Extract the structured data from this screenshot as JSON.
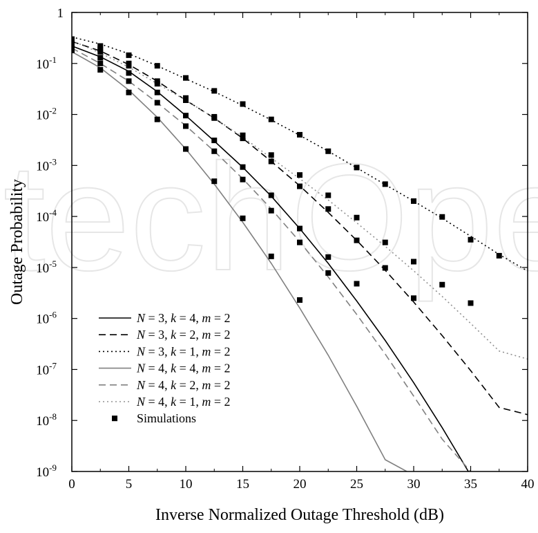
{
  "chart_data": {
    "type": "line",
    "title": "",
    "xlabel": "Inverse Normalized Outage Threshold (dB)",
    "ylabel": "Outage Probability",
    "xlim": [
      0,
      40
    ],
    "ylim": [
      1e-09,
      1
    ],
    "y_scale": "log",
    "grid": false,
    "legend_position": "bottom-left",
    "x_ticks": [
      0,
      5,
      10,
      15,
      20,
      25,
      30,
      35,
      40
    ],
    "y_ticks": [
      {
        "value": 1,
        "base": "1",
        "exp": ""
      },
      {
        "value": 0.1,
        "base": "10",
        "exp": "-1"
      },
      {
        "value": 0.01,
        "base": "10",
        "exp": "-2"
      },
      {
        "value": 0.001,
        "base": "10",
        "exp": "-3"
      },
      {
        "value": 0.0001,
        "base": "10",
        "exp": "-4"
      },
      {
        "value": 1e-05,
        "base": "10",
        "exp": "-5"
      },
      {
        "value": 1e-06,
        "base": "10",
        "exp": "-6"
      },
      {
        "value": 1e-07,
        "base": "10",
        "exp": "-7"
      },
      {
        "value": 1e-08,
        "base": "10",
        "exp": "-8"
      },
      {
        "value": 1e-09,
        "base": "10",
        "exp": "-9"
      }
    ],
    "series": [
      {
        "legend": {
          "n": "3",
          "k": "4",
          "m": "2"
        },
        "color": "#000000",
        "dash": "solid",
        "x": [
          0,
          2.5,
          5,
          7.5,
          10,
          12.5,
          15,
          17.5,
          20,
          22.5,
          25,
          27.5,
          30,
          32.5,
          35,
          37.5
        ],
        "y": [
          0.22,
          0.135,
          0.07,
          0.028,
          0.0095,
          0.003,
          0.00092,
          0.00025,
          5.8e-05,
          1.2e-05,
          2.2e-06,
          3.7e-07,
          5.5e-08,
          7.2e-09,
          8.4e-10,
          8e-10
        ]
      },
      {
        "legend": {
          "n": "3",
          "k": "2",
          "m": "2"
        },
        "color": "#000000",
        "dash": "dashed",
        "x": [
          0,
          2.5,
          5,
          7.5,
          10,
          12.5,
          15,
          17.5,
          20,
          22.5,
          25,
          27.5,
          30,
          32.5,
          35,
          37.5,
          40
        ],
        "y": [
          0.27,
          0.175,
          0.095,
          0.045,
          0.019,
          0.0085,
          0.0034,
          0.0012,
          0.0004,
          0.00012,
          3.4e-05,
          8.8e-06,
          2.1e-06,
          4.6e-07,
          9.5e-08,
          1.8e-08,
          1.3e-08
        ]
      },
      {
        "legend": {
          "n": "3",
          "k": "1",
          "m": "2"
        },
        "color": "#000000",
        "dash": "dotted",
        "x": [
          0,
          2.5,
          5,
          7.5,
          10,
          12.5,
          15,
          17.5,
          20,
          22.5,
          25,
          27.5,
          30,
          32.5,
          35,
          37.5,
          40
        ],
        "y": [
          0.33,
          0.24,
          0.155,
          0.09,
          0.05,
          0.028,
          0.015,
          0.0078,
          0.0039,
          0.0019,
          0.0009,
          0.00042,
          0.0002,
          9.2e-05,
          4.1e-05,
          1.8e-05,
          8.5e-06
        ]
      },
      {
        "legend": {
          "n": "4",
          "k": "4",
          "m": "2"
        },
        "color": "#808080",
        "dash": "solid",
        "x": [
          0,
          2.5,
          5,
          7.5,
          10,
          12.5,
          15,
          17.5,
          20,
          22.5,
          25,
          27.5,
          29.4
        ],
        "y": [
          0.17,
          0.082,
          0.03,
          0.0088,
          0.0021,
          0.00043,
          7.7e-05,
          1.2e-05,
          1.6e-06,
          1.9e-07,
          1.9e-08,
          1.7e-09,
          1e-09
        ]
      },
      {
        "legend": {
          "n": "4",
          "k": "2",
          "m": "2"
        },
        "color": "#808080",
        "dash": "dashed",
        "x": [
          0,
          2.5,
          5,
          7.5,
          10,
          12.5,
          15,
          17.5,
          20,
          22.5,
          25,
          27.5,
          30,
          32.5,
          35
        ],
        "y": [
          0.2,
          0.1,
          0.045,
          0.017,
          0.006,
          0.0019,
          0.00055,
          0.00014,
          3.2e-05,
          6.5e-06,
          1.2e-06,
          2e-07,
          3e-08,
          4.3e-09,
          1e-09
        ]
      },
      {
        "legend": {
          "n": "4",
          "k": "1",
          "m": "2"
        },
        "color": "#909090",
        "dash": "dotted",
        "x": [
          0,
          2.5,
          5,
          7.5,
          10,
          12.5,
          15,
          17.5,
          20,
          22.5,
          25,
          27.5,
          30,
          32.5,
          35,
          37.5,
          40
        ],
        "y": [
          0.28,
          0.16,
          0.085,
          0.04,
          0.019,
          0.0085,
          0.0036,
          0.0014,
          0.00055,
          0.00021,
          7.5e-05,
          2.6e-05,
          8.6e-06,
          2.7e-06,
          8e-07,
          2.3e-07,
          1.6e-07
        ]
      }
    ],
    "simulations": {
      "legend": "Simulations",
      "x": [
        0,
        0,
        0,
        0,
        0,
        0,
        2.5,
        2.5,
        2.5,
        2.5,
        2.5,
        2.5,
        5,
        5,
        5,
        5,
        5,
        5,
        7.5,
        7.5,
        7.5,
        7.5,
        7.5,
        7.5,
        10,
        10,
        10,
        10,
        10,
        10,
        12.5,
        12.5,
        12.5,
        12.5,
        12.5,
        12.5,
        15,
        15,
        15,
        15,
        15,
        15,
        17.5,
        17.5,
        17.5,
        17.5,
        17.5,
        17.5,
        20,
        20,
        20,
        20,
        20,
        20,
        22.5,
        22.5,
        22.5,
        22.5,
        22.5,
        25,
        25,
        25,
        25,
        27.5,
        27.5,
        27.5,
        30,
        30,
        30,
        32.5,
        32.5,
        35,
        35,
        37.5
      ],
      "y": [
        0.3,
        0.25,
        0.22,
        0.2,
        0.18,
        0.27,
        0.22,
        0.17,
        0.13,
        0.1,
        0.075,
        0.19,
        0.145,
        0.09,
        0.065,
        0.045,
        0.027,
        0.1,
        0.09,
        0.045,
        0.027,
        0.017,
        0.008,
        0.04,
        0.052,
        0.021,
        0.0095,
        0.0059,
        0.0021,
        0.019,
        0.029,
        0.009,
        0.0031,
        0.0019,
        0.00049,
        0.0085,
        0.016,
        0.0039,
        0.00093,
        0.00053,
        9.2e-05,
        0.0034,
        0.008,
        0.0016,
        0.00026,
        0.00013,
        1.65e-05,
        0.0012,
        0.004,
        0.00065,
        5.8e-05,
        3.1e-05,
        2.3e-06,
        0.00039,
        0.0019,
        0.00026,
        1.6e-05,
        7.8e-06,
        0.00014,
        0.00091,
        9.5e-05,
        4.8e-06,
        3.4e-05,
        0.00043,
        3.1e-05,
        9.8e-06,
        0.0002,
        1.3e-05,
        2.5e-06,
        9.8e-05,
        4.6e-06,
        3.5e-05,
        2e-06,
        1.7e-05
      ]
    },
    "watermark": "IntechOpen"
  }
}
